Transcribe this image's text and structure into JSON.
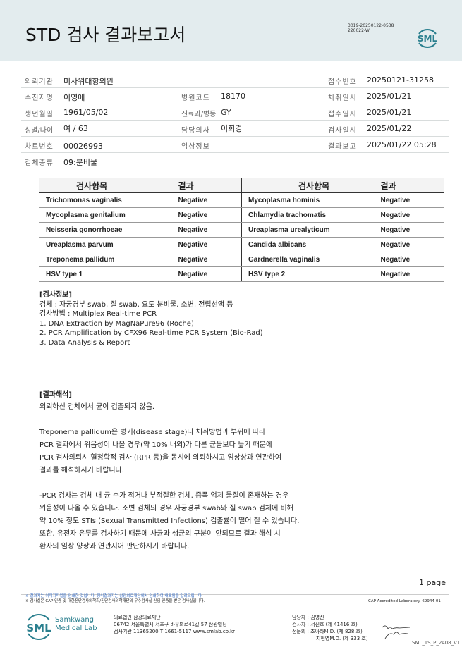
{
  "header": {
    "title": "STD 검사 결과보고서",
    "doc_code": [
      "3019-20250122-0538",
      "220022-W"
    ],
    "logo_text": "SML"
  },
  "info": {
    "institution": {
      "label": "의뢰기관",
      "value": "미사위대항의원"
    },
    "receipt_no": {
      "label": "접수번호",
      "value": "20250121-31258"
    },
    "patient": {
      "label": "수진자명",
      "value": "이영애"
    },
    "hospital_code": {
      "label": "병원코드",
      "value": "18170"
    },
    "collect_date": {
      "label": "채취일시",
      "value": "2025/01/21"
    },
    "birth": {
      "label": "생년월일",
      "value": "1961/05/02"
    },
    "dept": {
      "label": "진료과/병동",
      "value": "GY"
    },
    "receipt_date": {
      "label": "접수일시",
      "value": "2025/01/21"
    },
    "sex_age": {
      "label": "성별/나이",
      "value": "여 / 63"
    },
    "doctor": {
      "label": "담당의사",
      "value": "이희경"
    },
    "test_date": {
      "label": "검사일시",
      "value": "2025/01/22"
    },
    "chart_no": {
      "label": "차트번호",
      "value": "00026993"
    },
    "clinical": {
      "label": "임상정보",
      "value": ""
    },
    "report": {
      "label": "결과보고",
      "value": "2025/01/22 05:28"
    },
    "specimen": {
      "label": "검체종류",
      "value": "09:분비물"
    }
  },
  "results": {
    "headers": [
      "검사항목",
      "결과",
      "검사항목",
      "결과"
    ],
    "rows": [
      [
        "Trichomonas vaginalis",
        "Negative",
        "Mycoplasma hominis",
        "Negative"
      ],
      [
        "Mycoplasma genitalium",
        "Negative",
        "Chlamydia trachomatis",
        "Negative"
      ],
      [
        "Neisseria gonorrhoeae",
        "Negative",
        "Ureaplasma urealyticum",
        "Negative"
      ],
      [
        "Ureaplasma parvum",
        "Negative",
        "Candida albicans",
        "Negative"
      ],
      [
        "Treponema pallidum",
        "Negative",
        "Gardnerella vaginalis",
        "Negative"
      ],
      [
        "HSV type 1",
        "Negative",
        "HSV type 2",
        "Negative"
      ]
    ]
  },
  "test_info": {
    "title": "[검사정보]",
    "lines": [
      "검체 : 자궁경부 swab, 질 swab, 요도 분비물, 소변, 전립선액 등",
      "검사방법 : Multiplex Real-time PCR",
      "1. DNA Extraction by MagNaPure96 (Roche)",
      "2. PCR Amplification by CFX96 Real-time PCR System (Bio-Rad)",
      "3. Data Analysis & Report"
    ]
  },
  "interpretation": {
    "title": "[결과해석]",
    "summary": "의뢰하신 검체에서 균이 검출되지 않음.",
    "para1": [
      "Treponema pallidum은 병기(disease stage)나 채취방법과 부위에 따라",
      "PCR 결과에서 위음성이 나올 경우(약 10% 내외)가 다른 균들보다 높기 때문에",
      "PCR 검사의뢰시 혈청학적 검사 (RPR 등)을 동시에 의뢰하시고 임상상과 연관하여",
      "결과를 해석하시기 바랍니다."
    ],
    "para2": [
      "-PCR 검사는 검체 내 균 수가 적거나 부적절한 검체, 증폭 억제 물질이 존재하는 경우",
      "위음성이 나올 수 있습니다. 소변 검체의 경우 자궁경부 swab와 질 swab 검체에 비해",
      "약 10% 정도 STIs (Sexual Transmitted Infections) 검출률이 떨어 질 수 있습니다.",
      "또한, 유전자 유무를 검사하기 때문에 사균과 생균의 구분이 안되므로 결과 해석 시",
      "환자의 임상 양상과 연관지어 판단하시기 바랍니다."
    ]
  },
  "page_label": "1 page",
  "footer": {
    "note1": "※ 결과지는 이미지파일을 인쇄한 것입니다. 정식결과지는 삼광의료재단에서 인쇄하여 배포됨을 알려드립니다.",
    "note2": "※ 검사실은 CAP 인증 및 대한진단검사의학회/진단검사의학재단의 우수검사실 신임 인증을 받은 검사실입니다.",
    "cap": "CAP Accredited Laboratory. 69944-01",
    "logo_sml": "SML",
    "logo_name1": "Samkwang",
    "logo_name2": "Medical Lab",
    "org": [
      "의료법인 삼광의료재단",
      "06742 서울특별시 서초구 바우뫼로41길 57 삼광빌딩",
      "검사기관 11365200 T 1661-5117 www.smlab.co.kr"
    ],
    "staff": [
      "담당자 : 김영진",
      "검사자 : 서진호 (제 41416 호)",
      "전문의 : 조아라M.D. (제 828 호)",
      "지현영M.D. (제 333 호)"
    ],
    "form_code": "SML_TS_P_2408_V1"
  },
  "colors": {
    "header_bg": "#e3ecee",
    "brand": "#2a7f8e",
    "note_blue": "#3b6fc4"
  }
}
